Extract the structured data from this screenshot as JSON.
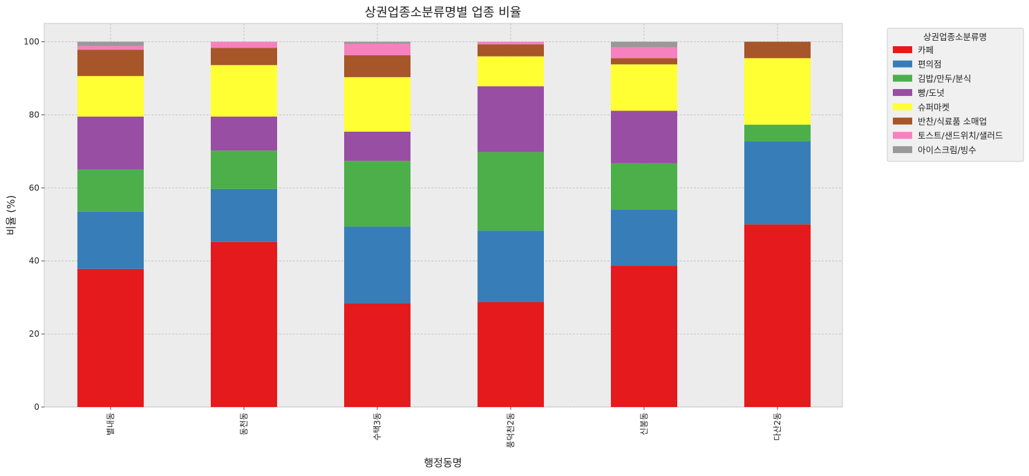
{
  "chart_data": {
    "type": "bar",
    "stacked": true,
    "title": "상권업종소분류명별 업종 비율",
    "xlabel": "행정동명",
    "ylabel": "비율 (%)",
    "ylim": [
      0,
      105
    ],
    "yticks": [
      0,
      20,
      40,
      60,
      80,
      100
    ],
    "grid": true,
    "legend_placement": "outside top-right",
    "legend_title": "상권업종소분류명",
    "categories": [
      "별내동",
      "동천동",
      "수택3동",
      "풍덕천2동",
      "신봉동",
      "다산2동"
    ],
    "series": [
      {
        "name": "카페",
        "color": "#e41a1c",
        "values": [
          37.8,
          45.2,
          28.4,
          28.7,
          38.7,
          50.0
        ]
      },
      {
        "name": "편의점",
        "color": "#377eb8",
        "values": [
          15.7,
          14.5,
          21.0,
          19.6,
          15.3,
          22.7
        ]
      },
      {
        "name": "김밥/만두/분식",
        "color": "#4daf4a",
        "values": [
          11.5,
          10.5,
          18.0,
          21.5,
          12.7,
          4.6
        ]
      },
      {
        "name": "빵/도넛",
        "color": "#984ea3",
        "values": [
          14.5,
          9.3,
          8.0,
          18.0,
          14.4,
          0
        ]
      },
      {
        "name": "슈퍼마켓",
        "color": "#ffff33",
        "values": [
          11.1,
          14.1,
          14.9,
          8.2,
          12.7,
          18.2
        ]
      },
      {
        "name": "반찬/식료품 소매업",
        "color": "#a65628",
        "values": [
          7.2,
          4.7,
          6.0,
          3.3,
          1.7,
          4.5
        ]
      },
      {
        "name": "토스트/샌드위치/샐러드",
        "color": "#f781bf",
        "values": [
          1.0,
          1.7,
          3.1,
          0.7,
          3.0,
          0
        ]
      },
      {
        "name": "아이스크림/빙수",
        "color": "#999999",
        "values": [
          1.2,
          0,
          0.6,
          0,
          1.5,
          0
        ]
      }
    ]
  }
}
